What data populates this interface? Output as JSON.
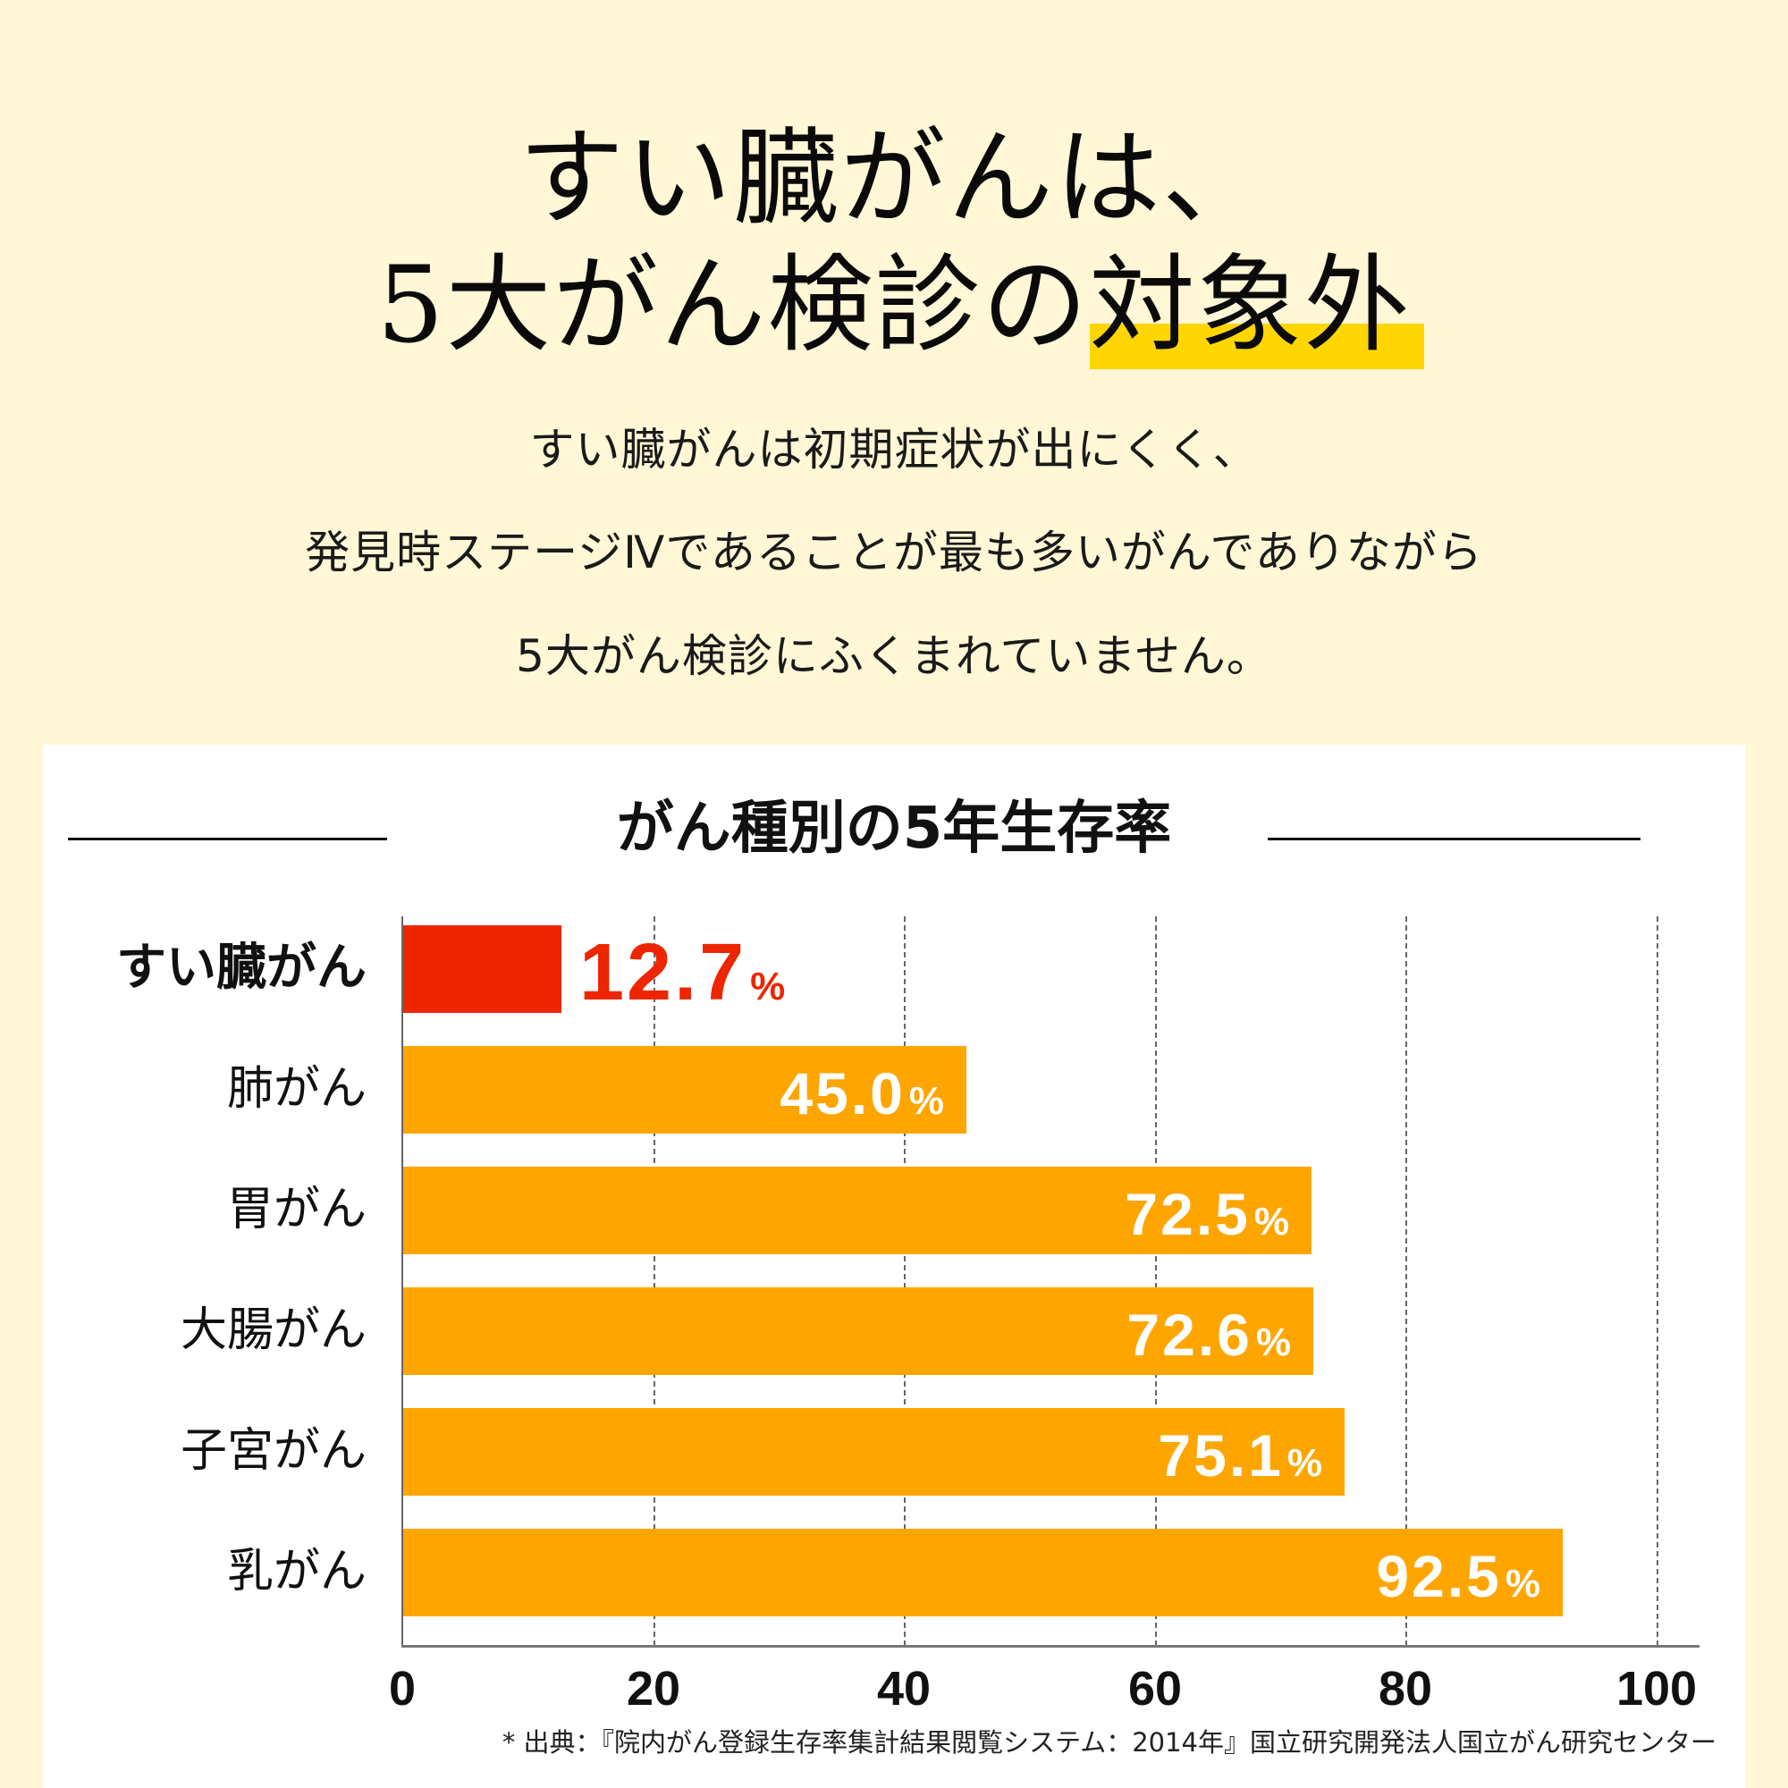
{
  "headline": {
    "line1": "すい臓がんは、",
    "line2_prefix": "5大がん検診の",
    "line2_highlight": "対象外",
    "highlight_color": "#FFD600"
  },
  "subtitle": {
    "lines": [
      "すい臓がんは初期症状が出にくく、",
      "発見時ステージⅣであることが最も多いがんでありながら",
      "5大がん検診にふくまれていません。"
    ]
  },
  "colors": {
    "background": "#FFF7D6",
    "card": "#FFFFFF",
    "highlight_bar": "#EE2600",
    "default_bar": "#FFA500"
  },
  "chart_data": {
    "type": "bar",
    "orientation": "horizontal",
    "title": "がん種別の5年生存率",
    "categories": [
      "すい臓がん",
      "肺がん",
      "胃がん",
      "大腸がん",
      "子宮がん",
      "乳がん"
    ],
    "values": [
      12.7,
      45.0,
      72.5,
      72.6,
      75.1,
      92.5
    ],
    "value_labels": [
      "12.7",
      "45.0",
      "72.5",
      "72.6",
      "75.1",
      "92.5"
    ],
    "unit": "%",
    "highlight_index": 0,
    "xlabel": "",
    "ylabel": "",
    "xlim": [
      0,
      100
    ],
    "x_ticks": [
      "0",
      "20",
      "40",
      "60",
      "80",
      "100"
    ],
    "grid": "vertical dashed",
    "legend": null
  },
  "source": "* 出典：『院内がん登録生存率集計結果閲覧システム：2014年』国立研究開発法人国立がん研究センター"
}
